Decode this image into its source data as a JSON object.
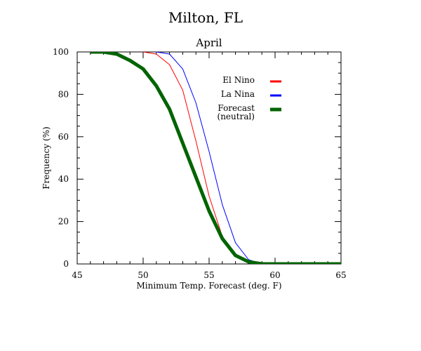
{
  "chart_data": {
    "type": "line",
    "title": "Milton, FL",
    "subtitle": "April",
    "xlabel": "Minimum Temp. Forecast (deg. F)",
    "ylabel": "Frequency (%)",
    "xlim": [
      45,
      65
    ],
    "ylim": [
      0,
      100
    ],
    "xticks": [
      45,
      50,
      55,
      60,
      65
    ],
    "yticks": [
      0,
      20,
      40,
      60,
      80,
      100
    ],
    "grid": false,
    "legend_position": "top-right",
    "series": [
      {
        "name": "El Nino",
        "color": "#ff0000",
        "width": 1,
        "x": [
          50,
          51,
          52,
          53,
          54,
          55,
          56,
          57,
          58,
          59,
          60,
          61,
          62,
          63,
          64,
          65
        ],
        "y": [
          100,
          99,
          94,
          82,
          58,
          32,
          13,
          4,
          1,
          0,
          0,
          0,
          0,
          0,
          0,
          0
        ]
      },
      {
        "name": "La Nina",
        "color": "#0000ff",
        "width": 1,
        "x": [
          50,
          51,
          52,
          53,
          54,
          55,
          56,
          57,
          58,
          59,
          60,
          61,
          62,
          63,
          64,
          65
        ],
        "y": [
          101,
          100,
          99,
          92,
          76,
          53,
          28,
          10,
          2,
          0,
          0,
          0,
          0,
          0,
          0,
          0
        ]
      },
      {
        "name": "Forecast\n(neutral)",
        "legend_lines": [
          "Forecast",
          "(neutral)"
        ],
        "color": "#006400",
        "width": 5,
        "x": [
          46,
          47,
          48,
          49,
          50,
          51,
          52,
          53,
          54,
          55,
          56,
          57,
          58,
          59,
          60,
          61,
          62,
          63,
          64,
          65
        ],
        "y": [
          100,
          100,
          99,
          96,
          92,
          84,
          73,
          57,
          41,
          25,
          12,
          4,
          1,
          0,
          0,
          0,
          0,
          0,
          0,
          0
        ]
      }
    ]
  }
}
